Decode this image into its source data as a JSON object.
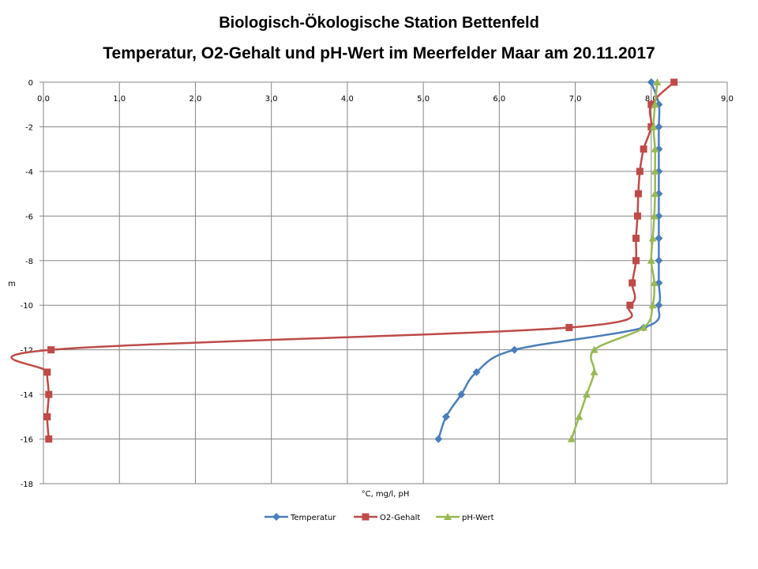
{
  "title": "Biologisch-Ökologische Station Bettenfeld",
  "subtitle": "Temperatur, O2-Gehalt und pH-Wert im Meerfelder Maar am 20.11.2017",
  "chart_data": {
    "type": "line",
    "xlabel": "°C, mg/l, pH",
    "ylabel": "m",
    "xlim": [
      0,
      9
    ],
    "ylim": [
      -18,
      0
    ],
    "x_ticks": [
      "0,0",
      "1,0",
      "2,0",
      "3,0",
      "4,0",
      "5,0",
      "6,0",
      "7,0",
      "8,0",
      "9,0"
    ],
    "y_ticks": [
      "0",
      "-2",
      "-4",
      "-6",
      "-8",
      "-10",
      "-12",
      "-14",
      "-16",
      "-18"
    ],
    "grid": true,
    "legend_position": "bottom",
    "series": [
      {
        "name": "Temperatur",
        "color": "#4a7ebb",
        "marker": "diamond",
        "points": [
          [
            8.0,
            0
          ],
          [
            8.1,
            -1
          ],
          [
            8.1,
            -2
          ],
          [
            8.1,
            -3
          ],
          [
            8.1,
            -4
          ],
          [
            8.1,
            -5
          ],
          [
            8.1,
            -6
          ],
          [
            8.1,
            -7
          ],
          [
            8.1,
            -8
          ],
          [
            8.1,
            -9
          ],
          [
            8.1,
            -10
          ],
          [
            7.9,
            -11
          ],
          [
            6.2,
            -12
          ],
          [
            5.7,
            -13
          ],
          [
            5.5,
            -14
          ],
          [
            5.3,
            -15
          ],
          [
            5.2,
            -16
          ]
        ]
      },
      {
        "name": "O2-Gehalt",
        "color": "#be4b48",
        "marker": "square",
        "points": [
          [
            8.3,
            0
          ],
          [
            8.0,
            -1
          ],
          [
            8.0,
            -2
          ],
          [
            7.9,
            -3
          ],
          [
            7.85,
            -4
          ],
          [
            7.83,
            -5
          ],
          [
            7.82,
            -6
          ],
          [
            7.8,
            -7
          ],
          [
            7.8,
            -8
          ],
          [
            7.75,
            -9
          ],
          [
            7.72,
            -10
          ],
          [
            6.92,
            -11
          ],
          [
            0.1,
            -12
          ],
          [
            0.05,
            -13
          ],
          [
            0.07,
            -14
          ],
          [
            0.05,
            -15
          ],
          [
            0.07,
            -16
          ]
        ]
      },
      {
        "name": "pH-Wert",
        "color": "#98b954",
        "marker": "triangle",
        "points": [
          [
            8.08,
            0
          ],
          [
            8.05,
            -1
          ],
          [
            8.03,
            -2
          ],
          [
            8.05,
            -3
          ],
          [
            8.05,
            -4
          ],
          [
            8.05,
            -5
          ],
          [
            8.04,
            -6
          ],
          [
            8.02,
            -7
          ],
          [
            8.0,
            -8
          ],
          [
            8.04,
            -9
          ],
          [
            8.02,
            -10
          ],
          [
            7.9,
            -11
          ],
          [
            7.25,
            -12
          ],
          [
            7.25,
            -13
          ],
          [
            7.15,
            -14
          ],
          [
            7.05,
            -15
          ],
          [
            6.95,
            -16
          ]
        ]
      }
    ]
  }
}
